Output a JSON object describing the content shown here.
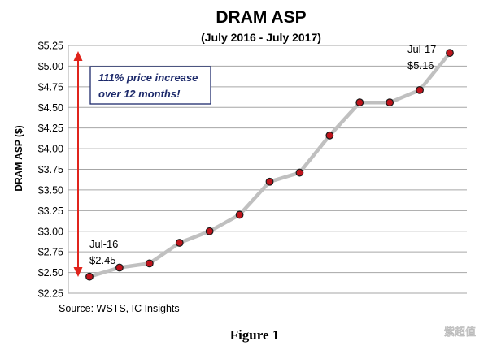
{
  "chart_data": {
    "type": "line",
    "title": "DRAM ASP",
    "subtitle": "(July 2016 - July 2017)",
    "ylabel": "DRAM ASP ($)",
    "xlabel": "",
    "ylim": [
      2.25,
      5.25
    ],
    "yticks": [
      "$2.25",
      "$2.50",
      "$2.75",
      "$3.00",
      "$3.25",
      "$3.50",
      "$3.75",
      "$4.00",
      "$4.25",
      "$4.50",
      "$4.75",
      "$5.00",
      "$5.25"
    ],
    "ytick_values": [
      2.25,
      2.5,
      2.75,
      3.0,
      3.25,
      3.5,
      3.75,
      4.0,
      4.25,
      4.5,
      4.75,
      5.0,
      5.25
    ],
    "grid": true,
    "series": [
      {
        "values": [
          2.45,
          2.56,
          2.61,
          2.86,
          3.0,
          3.2,
          3.6,
          3.71,
          4.16,
          4.56,
          4.56,
          4.71,
          5.16
        ]
      }
    ],
    "annotations": {
      "start_month": "Jul-16",
      "start_value": "$2.45",
      "end_month": "Jul-17",
      "end_value": "$5.16",
      "box_line1": "111% price increase",
      "box_line2": "over 12 months!"
    },
    "colors": {
      "line": "#c0c0c0",
      "marker": "#c0141c",
      "arrow": "#e0241c",
      "box_border": "#1d2a6b",
      "grid": "#a6a6a6"
    }
  },
  "source": "Source:  WSTS, IC Insights",
  "figure_caption": "Figure 1",
  "watermark": "紫超值"
}
